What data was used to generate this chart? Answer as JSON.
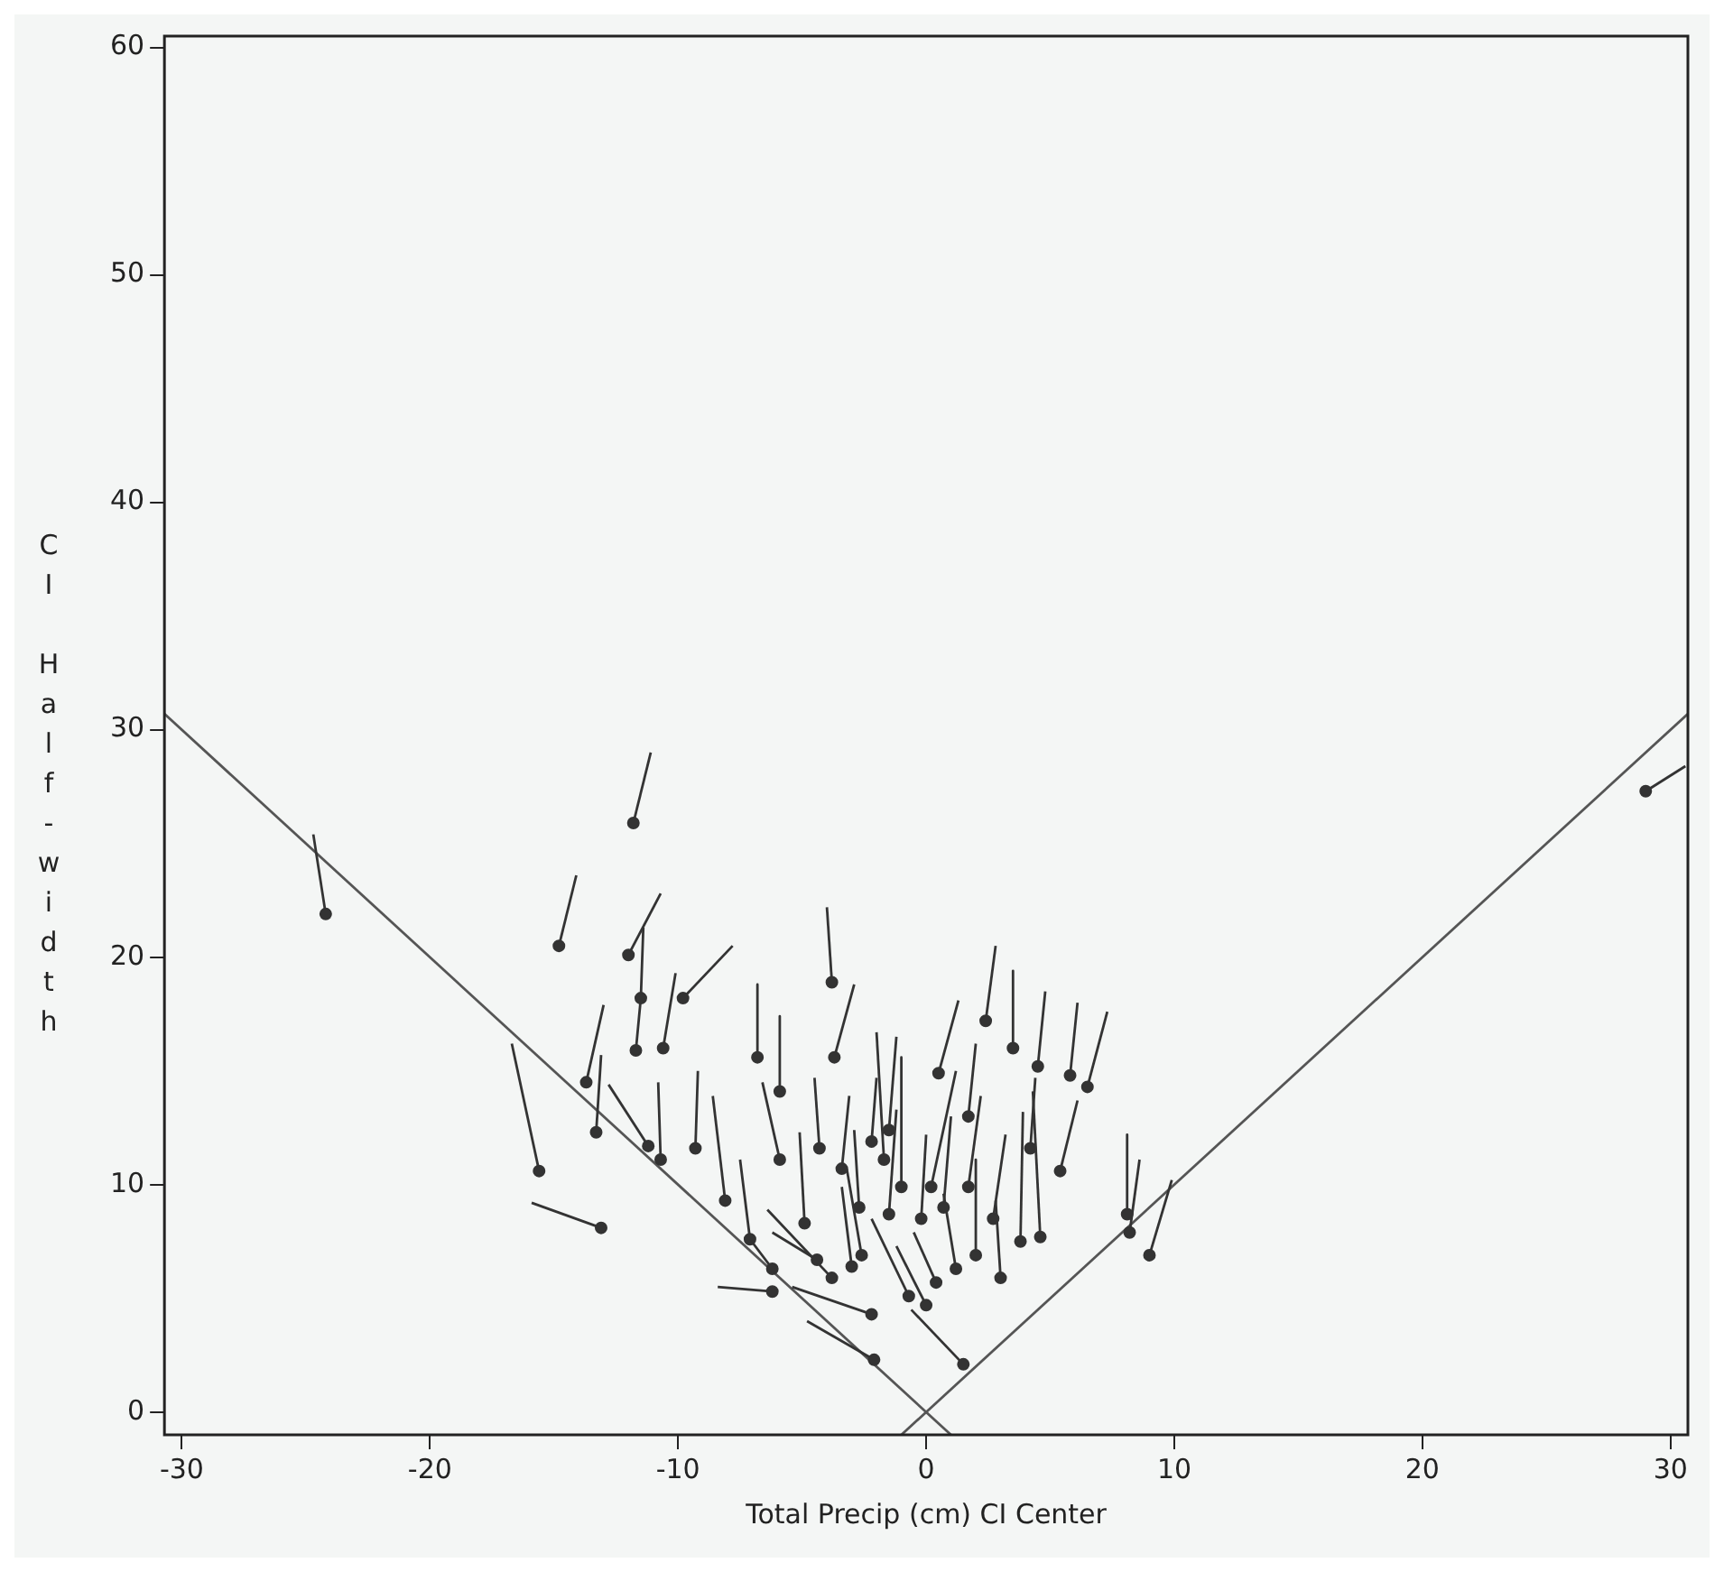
{
  "chart_data": {
    "type": "scatter",
    "xlabel": "Total Precip (cm) CI Center",
    "ylabel": "CI Half-width",
    "xlim": [
      -30.7,
      30.7
    ],
    "ylim": [
      -1,
      60.5
    ],
    "xticks": [
      -30,
      -20,
      -10,
      0,
      10,
      20,
      30
    ],
    "yticks": [
      0,
      10,
      20,
      30,
      40,
      50,
      60
    ],
    "grid": false,
    "legend": false,
    "series": [
      {
        "type": "scatter",
        "color": "#333333",
        "marker": "circle",
        "x": [
          -24.2,
          -11.8,
          -14.8,
          -12.0,
          -11.5,
          -9.8,
          -11.7,
          -10.6,
          -13.7,
          -13.3,
          -15.6,
          -13.1,
          -11.2,
          -10.7,
          -9.3,
          -3.8,
          -6.8,
          -5.9,
          -3.7,
          2.4,
          3.5,
          0.5,
          4.5,
          5.8,
          6.5,
          5.4,
          -4.3,
          -4.9,
          -5.9,
          -8.1,
          -7.1,
          -6.2,
          -6.2,
          -3.8,
          -4.4,
          -2.2,
          -2.1,
          1.5,
          -0.7,
          0.0,
          0.4,
          -3.0,
          -2.6,
          1.2,
          3.0,
          3.8,
          4.6,
          2.0,
          -1.5,
          -1.0,
          -1.7,
          0.2,
          1.7,
          2.7,
          0.7,
          -0.2,
          -2.7,
          -3.4,
          -2.2,
          -1.5,
          1.7,
          4.2,
          8.1,
          8.2,
          9.0,
          29.0
        ],
        "values": [
          21.9,
          25.9,
          20.5,
          20.1,
          18.2,
          18.2,
          15.9,
          16.0,
          14.5,
          12.3,
          10.6,
          8.1,
          11.7,
          11.1,
          11.6,
          18.9,
          15.6,
          14.1,
          15.6,
          17.2,
          16.0,
          14.9,
          15.2,
          14.8,
          14.3,
          10.6,
          11.6,
          8.3,
          11.1,
          9.3,
          7.6,
          6.3,
          5.3,
          5.9,
          6.7,
          4.3,
          2.3,
          2.1,
          5.1,
          4.7,
          5.7,
          6.4,
          6.9,
          6.3,
          5.9,
          7.5,
          7.7,
          6.9,
          8.7,
          9.9,
          11.1,
          9.9,
          9.9,
          8.5,
          9.0,
          8.5,
          9.0,
          10.7,
          11.9,
          12.4,
          13.0,
          11.6,
          8.7,
          7.9,
          6.9,
          27.3
        ]
      },
      {
        "type": "line",
        "color": "#333333",
        "marker": "none",
        "x": [
          -24.7,
          -24.2
        ],
        "values": [
          25.4,
          21.9
        ]
      },
      {
        "type": "line",
        "color": "#333333",
        "marker": "none",
        "x": [
          -11.1,
          -11.8
        ],
        "values": [
          29.0,
          25.9
        ]
      },
      {
        "type": "line",
        "color": "#333333",
        "marker": "none",
        "x": [
          -14.1,
          -14.8
        ],
        "values": [
          23.6,
          20.5
        ]
      },
      {
        "type": "line",
        "color": "#333333",
        "marker": "none",
        "x": [
          -10.7,
          -12.0
        ],
        "values": [
          22.8,
          20.1
        ]
      },
      {
        "type": "line",
        "color": "#333333",
        "marker": "none",
        "x": [
          -11.4,
          -11.5,
          -11.7
        ],
        "values": [
          21.3,
          18.2,
          15.9
        ]
      },
      {
        "type": "line",
        "color": "#333333",
        "marker": "none",
        "x": [
          -7.8,
          -9.8
        ],
        "values": [
          20.5,
          18.2
        ]
      },
      {
        "type": "line",
        "color": "#333333",
        "marker": "none",
        "x": [
          -10.1,
          -10.6
        ],
        "values": [
          19.3,
          16.0
        ]
      },
      {
        "type": "line",
        "color": "#333333",
        "marker": "none",
        "x": [
          -13.0,
          -13.7
        ],
        "values": [
          17.9,
          14.5
        ]
      },
      {
        "type": "line",
        "color": "#333333",
        "marker": "none",
        "x": [
          -13.1,
          -13.3
        ],
        "values": [
          15.7,
          12.3
        ]
      },
      {
        "type": "line",
        "color": "#333333",
        "marker": "none",
        "x": [
          -16.7,
          -15.6
        ],
        "values": [
          16.2,
          10.6
        ]
      },
      {
        "type": "line",
        "color": "#333333",
        "marker": "none",
        "x": [
          -15.9,
          -13.1
        ],
        "values": [
          9.2,
          8.1
        ]
      },
      {
        "type": "line",
        "color": "#333333",
        "marker": "none",
        "x": [
          -12.8,
          -11.2
        ],
        "values": [
          14.4,
          11.7
        ]
      },
      {
        "type": "line",
        "color": "#333333",
        "marker": "none",
        "x": [
          -10.8,
          -10.7
        ],
        "values": [
          14.5,
          11.1
        ]
      },
      {
        "type": "line",
        "color": "#333333",
        "marker": "none",
        "x": [
          -9.2,
          -9.3
        ],
        "values": [
          15.0,
          11.6
        ]
      },
      {
        "type": "line",
        "color": "#333333",
        "marker": "none",
        "x": [
          -4.0,
          -3.8
        ],
        "values": [
          22.2,
          18.9
        ]
      },
      {
        "type": "line",
        "color": "#333333",
        "marker": "none",
        "x": [
          -6.8,
          -6.8
        ],
        "values": [
          18.8,
          15.6
        ]
      },
      {
        "type": "line",
        "color": "#333333",
        "marker": "none",
        "x": [
          -5.9,
          -5.9
        ],
        "values": [
          17.4,
          14.1
        ]
      },
      {
        "type": "line",
        "color": "#333333",
        "marker": "none",
        "x": [
          -2.9,
          -3.7
        ],
        "values": [
          18.8,
          15.6
        ]
      },
      {
        "type": "line",
        "color": "#333333",
        "marker": "none",
        "x": [
          2.8,
          2.4
        ],
        "values": [
          20.5,
          17.2
        ]
      },
      {
        "type": "line",
        "color": "#333333",
        "marker": "none",
        "x": [
          3.5,
          3.5
        ],
        "values": [
          19.4,
          16.0
        ]
      },
      {
        "type": "line",
        "color": "#333333",
        "marker": "none",
        "x": [
          1.3,
          0.5
        ],
        "values": [
          18.1,
          14.9
        ]
      },
      {
        "type": "line",
        "color": "#333333",
        "marker": "none",
        "x": [
          4.8,
          4.5
        ],
        "values": [
          18.5,
          15.2
        ]
      },
      {
        "type": "line",
        "color": "#333333",
        "marker": "none",
        "x": [
          6.1,
          5.8
        ],
        "values": [
          18.0,
          14.8
        ]
      },
      {
        "type": "line",
        "color": "#333333",
        "marker": "none",
        "x": [
          7.3,
          6.5
        ],
        "values": [
          17.6,
          14.3
        ]
      },
      {
        "type": "line",
        "color": "#333333",
        "marker": "none",
        "x": [
          6.1,
          5.4
        ],
        "values": [
          13.7,
          10.6
        ]
      },
      {
        "type": "line",
        "color": "#333333",
        "marker": "none",
        "x": [
          -4.5,
          -4.3
        ],
        "values": [
          14.7,
          11.6
        ]
      },
      {
        "type": "line",
        "color": "#333333",
        "marker": "none",
        "x": [
          -5.1,
          -4.9
        ],
        "values": [
          12.3,
          8.3
        ]
      },
      {
        "type": "line",
        "color": "#333333",
        "marker": "none",
        "x": [
          -6.6,
          -5.9
        ],
        "values": [
          14.5,
          11.1
        ]
      },
      {
        "type": "line",
        "color": "#333333",
        "marker": "none",
        "x": [
          -8.6,
          -8.1
        ],
        "values": [
          13.9,
          9.3
        ]
      },
      {
        "type": "line",
        "color": "#333333",
        "marker": "none",
        "x": [
          -7.5,
          -7.1,
          -6.2
        ],
        "values": [
          11.1,
          7.6,
          6.3
        ]
      },
      {
        "type": "line",
        "color": "#333333",
        "marker": "none",
        "x": [
          -8.4,
          -6.2
        ],
        "values": [
          5.5,
          5.3
        ]
      },
      {
        "type": "line",
        "color": "#333333",
        "marker": "none",
        "x": [
          -6.4,
          -3.8
        ],
        "values": [
          8.9,
          5.9
        ]
      },
      {
        "type": "line",
        "color": "#333333",
        "marker": "none",
        "x": [
          -6.2,
          -4.4
        ],
        "values": [
          7.9,
          6.7
        ]
      },
      {
        "type": "line",
        "color": "#333333",
        "marker": "none",
        "x": [
          -5.4,
          -2.2
        ],
        "values": [
          5.5,
          4.3
        ]
      },
      {
        "type": "line",
        "color": "#333333",
        "marker": "none",
        "x": [
          -4.8,
          -2.1
        ],
        "values": [
          4.0,
          2.3
        ]
      },
      {
        "type": "line",
        "color": "#333333",
        "marker": "none",
        "x": [
          -0.6,
          1.5
        ],
        "values": [
          4.5,
          2.1
        ]
      },
      {
        "type": "line",
        "color": "#333333",
        "marker": "none",
        "x": [
          -2.2,
          -0.7
        ],
        "values": [
          8.5,
          5.1
        ]
      },
      {
        "type": "line",
        "color": "#333333",
        "marker": "none",
        "x": [
          -1.2,
          0.0
        ],
        "values": [
          7.3,
          4.7
        ]
      },
      {
        "type": "line",
        "color": "#333333",
        "marker": "none",
        "x": [
          -0.5,
          0.4
        ],
        "values": [
          7.9,
          5.7
        ]
      },
      {
        "type": "line",
        "color": "#333333",
        "marker": "none",
        "x": [
          -3.4,
          -3.0
        ],
        "values": [
          9.9,
          6.4
        ]
      },
      {
        "type": "line",
        "color": "#333333",
        "marker": "none",
        "x": [
          -3.2,
          -2.6
        ],
        "values": [
          10.7,
          6.9
        ]
      },
      {
        "type": "line",
        "color": "#333333",
        "marker": "none",
        "x": [
          0.7,
          1.2
        ],
        "values": [
          9.6,
          6.3
        ]
      },
      {
        "type": "line",
        "color": "#333333",
        "marker": "none",
        "x": [
          2.8,
          3.0
        ],
        "values": [
          9.3,
          5.9
        ]
      },
      {
        "type": "line",
        "color": "#333333",
        "marker": "none",
        "x": [
          3.9,
          3.8
        ],
        "values": [
          13.2,
          7.5
        ]
      },
      {
        "type": "line",
        "color": "#333333",
        "marker": "none",
        "x": [
          4.3,
          4.6
        ],
        "values": [
          14.1,
          7.7
        ]
      },
      {
        "type": "line",
        "color": "#333333",
        "marker": "none",
        "x": [
          2.0,
          2.0
        ],
        "values": [
          11.1,
          6.9
        ]
      },
      {
        "type": "line",
        "color": "#333333",
        "marker": "none",
        "x": [
          -1.2,
          -1.5
        ],
        "values": [
          13.3,
          8.7
        ]
      },
      {
        "type": "line",
        "color": "#333333",
        "marker": "none",
        "x": [
          -1.0,
          -1.0
        ],
        "values": [
          15.6,
          9.9
        ]
      },
      {
        "type": "line",
        "color": "#333333",
        "marker": "none",
        "x": [
          -2.0,
          -1.7
        ],
        "values": [
          16.7,
          11.1
        ]
      },
      {
        "type": "line",
        "color": "#333333",
        "marker": "none",
        "x": [
          1.2,
          0.2
        ],
        "values": [
          15.0,
          9.9
        ]
      },
      {
        "type": "line",
        "color": "#333333",
        "marker": "none",
        "x": [
          2.2,
          1.7
        ],
        "values": [
          13.9,
          9.9
        ]
      },
      {
        "type": "line",
        "color": "#333333",
        "marker": "none",
        "x": [
          3.2,
          2.7
        ],
        "values": [
          12.2,
          8.5
        ]
      },
      {
        "type": "line",
        "color": "#333333",
        "marker": "none",
        "x": [
          1.0,
          0.7
        ],
        "values": [
          13.0,
          9.0
        ]
      },
      {
        "type": "line",
        "color": "#333333",
        "marker": "none",
        "x": [
          0.0,
          -0.2
        ],
        "values": [
          12.2,
          8.5
        ]
      },
      {
        "type": "line",
        "color": "#333333",
        "marker": "none",
        "x": [
          -2.9,
          -2.7
        ],
        "values": [
          12.4,
          9.0
        ]
      },
      {
        "type": "line",
        "color": "#333333",
        "marker": "none",
        "x": [
          -3.1,
          -3.4
        ],
        "values": [
          13.9,
          10.7
        ]
      },
      {
        "type": "line",
        "color": "#333333",
        "marker": "none",
        "x": [
          -2.0,
          -2.2
        ],
        "values": [
          14.7,
          11.9
        ]
      },
      {
        "type": "line",
        "color": "#333333",
        "marker": "none",
        "x": [
          -1.2,
          -1.5
        ],
        "values": [
          16.5,
          12.4
        ]
      },
      {
        "type": "line",
        "color": "#333333",
        "marker": "none",
        "x": [
          2.0,
          1.7
        ],
        "values": [
          16.2,
          13.0
        ]
      },
      {
        "type": "line",
        "color": "#333333",
        "marker": "none",
        "x": [
          4.4,
          4.2
        ],
        "values": [
          14.7,
          11.6
        ]
      },
      {
        "type": "line",
        "color": "#333333",
        "marker": "none",
        "x": [
          8.1,
          8.1
        ],
        "values": [
          12.2,
          8.7
        ]
      },
      {
        "type": "line",
        "color": "#333333",
        "marker": "none",
        "x": [
          8.6,
          8.2
        ],
        "values": [
          11.1,
          7.9
        ]
      },
      {
        "type": "line",
        "color": "#333333",
        "marker": "none",
        "x": [
          9.9,
          9.0
        ],
        "values": [
          10.2,
          6.9
        ]
      },
      {
        "type": "line",
        "color": "#333333",
        "marker": "none",
        "x": [
          30.6,
          29.0
        ],
        "values": [
          28.4,
          27.3
        ]
      },
      {
        "type": "line",
        "color": "#555555",
        "line_style": "solid",
        "marker": "none",
        "x": [
          -30.7,
          1
        ],
        "values": [
          30.7,
          -1
        ]
      },
      {
        "type": "line",
        "color": "#555555",
        "line_style": "solid",
        "marker": "none",
        "x": [
          -1,
          30.7
        ],
        "values": [
          -1,
          30.7
        ]
      }
    ]
  }
}
